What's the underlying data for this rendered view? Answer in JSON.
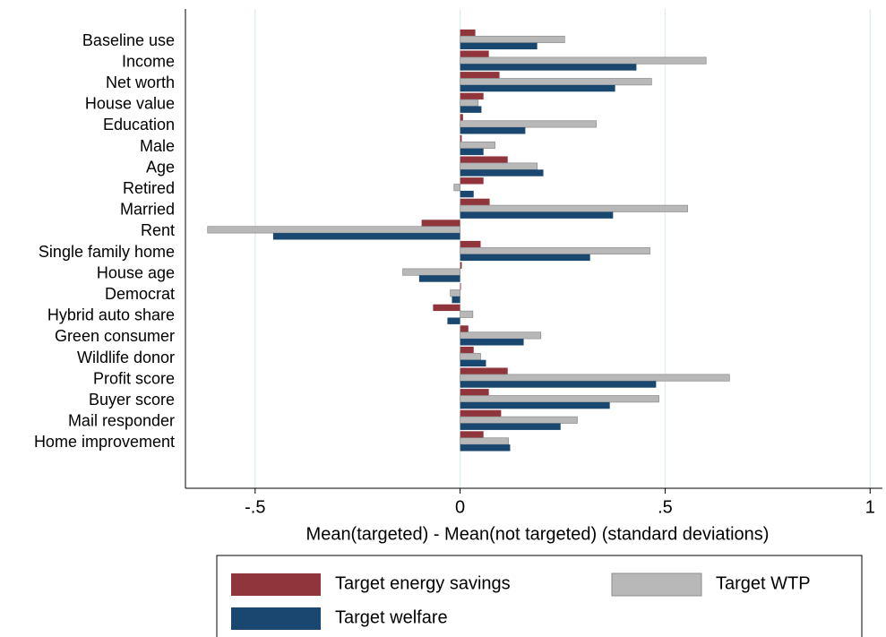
{
  "chart_data": {
    "type": "hbar",
    "x_label": "Mean(targeted) - Mean(not targeted)   (standard deviations)",
    "categories": [
      "Baseline use",
      "Income",
      "Net worth",
      "House value",
      "Education",
      "Male",
      "Age",
      "Retired",
      "Married",
      "Rent",
      "Single family home",
      "House age",
      "Democrat",
      "Hybrid auto share",
      "Green consumer",
      "Wildlife donor",
      "Profit score",
      "Buyer score",
      "Mail responder",
      "Home improvement"
    ],
    "series": [
      {
        "name": "Target energy savings",
        "color": "#90353b",
        "values": [
          0.037,
          0.07,
          0.096,
          0.057,
          0.007,
          0.004,
          0.116,
          0.057,
          0.072,
          -0.094,
          0.05,
          0.004,
          0.002,
          -0.066,
          0.02,
          0.033,
          0.116,
          0.07,
          0.1,
          0.057
        ]
      },
      {
        "name": "Target WTP",
        "color": "#b8b8b8",
        "values": [
          0.255,
          0.6,
          0.467,
          0.044,
          0.332,
          0.085,
          0.188,
          -0.015,
          0.555,
          -0.616,
          0.463,
          -0.14,
          -0.024,
          0.031,
          0.197,
          0.05,
          0.657,
          0.485,
          0.286,
          0.118
        ]
      },
      {
        "name": "Target welfare",
        "color": "#1a476f",
        "values": [
          0.188,
          0.43,
          0.378,
          0.052,
          0.159,
          0.057,
          0.203,
          0.033,
          0.373,
          -0.456,
          0.317,
          -0.1,
          -0.02,
          -0.031,
          0.155,
          0.063,
          0.478,
          0.365,
          0.245,
          0.122
        ]
      }
    ],
    "xlim": [
      -0.67,
      1.03
    ],
    "xticks": [
      {
        "value": -0.5,
        "label": "-.5"
      },
      0,
      {
        "value": 0.5,
        "label": ".5"
      },
      1
    ],
    "grid": true
  }
}
